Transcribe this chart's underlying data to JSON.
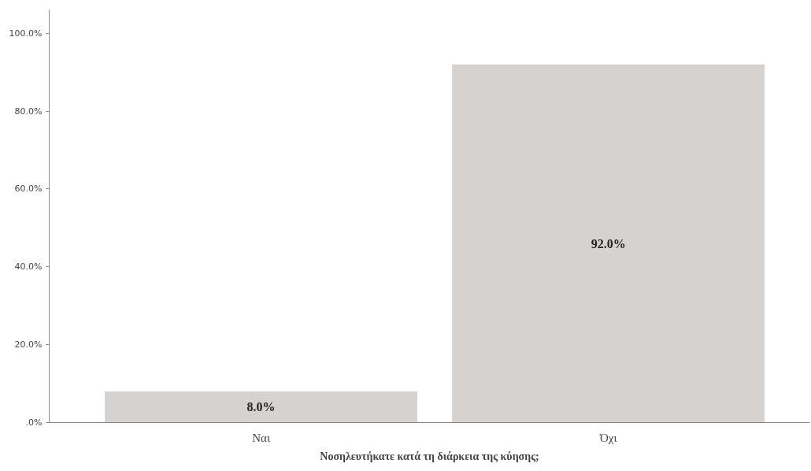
{
  "chart_data": {
    "type": "bar",
    "xlabel": "Νοσηλευτήκατε κατά τη διάρκεια της κύησης;",
    "categories": [
      "Ναι",
      "Όχι"
    ],
    "values": [
      8.0,
      92.0
    ],
    "value_labels": [
      "8.0%",
      "92.0%"
    ],
    "color": "#d6d2cf",
    "ylim": [
      0,
      106
    ],
    "yticks": [
      {
        "value": 0,
        "label": ".0%"
      },
      {
        "value": 20,
        "label": "20.0%"
      },
      {
        "value": 40,
        "label": "40.0%"
      },
      {
        "value": 60,
        "label": "60.0%"
      },
      {
        "value": 80,
        "label": "80.0%"
      },
      {
        "value": 100,
        "label": "100.0%"
      }
    ],
    "grid": false
  }
}
